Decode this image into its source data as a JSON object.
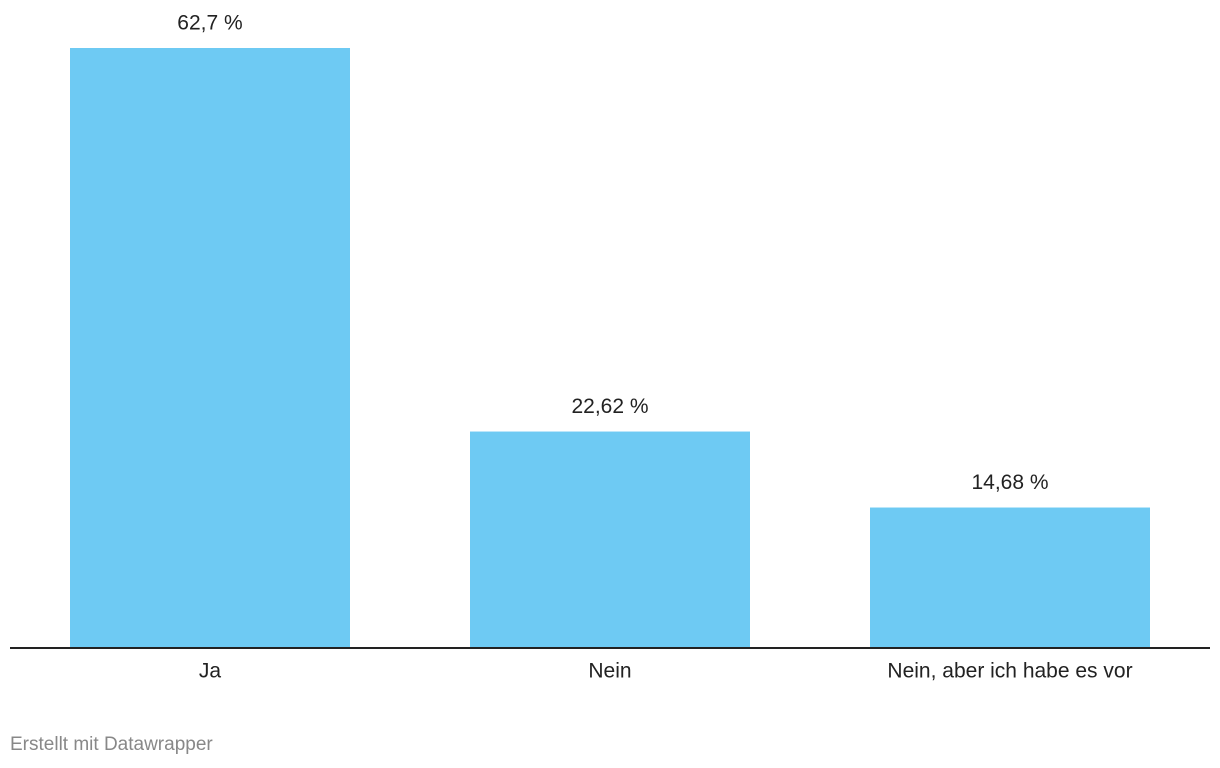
{
  "chart_data": {
    "type": "bar",
    "categories": [
      "Ja",
      "Nein",
      "Nein, aber ich habe es vor"
    ],
    "values": [
      62.7,
      22.62,
      14.68
    ],
    "value_labels": [
      "62,7 %",
      "22,62 %",
      "14,68 %"
    ],
    "color": "#6ecaf3"
  },
  "footer": {
    "credit": "Erstellt mit Datawrapper"
  }
}
